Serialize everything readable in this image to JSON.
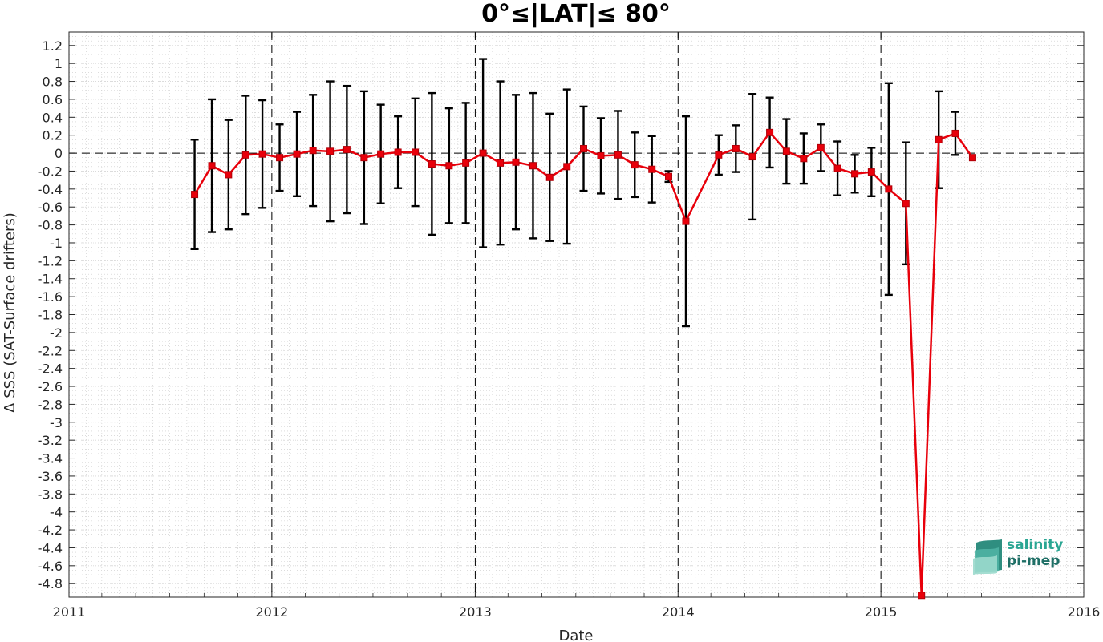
{
  "chart_data": {
    "type": "line",
    "title": "0°≤|LAT|≤ 80°",
    "xlabel": "Date",
    "ylabel": "Δ SSS (SAT-Surface drifters)",
    "xlim": [
      "2011-01-01",
      "2016-01-01"
    ],
    "ylim": [
      -4.95,
      1.35
    ],
    "xticks": [
      "2011",
      "2012",
      "2013",
      "2014",
      "2015",
      "2016"
    ],
    "yticks": [
      1.2,
      1,
      0.8,
      0.6,
      0.4,
      0.2,
      0,
      -0.2,
      -0.4,
      -0.6,
      -0.8,
      -1,
      -1.2,
      -1.4,
      -1.6,
      -1.8,
      -2,
      -2.2,
      -2.4,
      -2.6,
      -2.8,
      -3,
      -3.2,
      -3.4,
      -3.6,
      -3.8,
      -4,
      -4.2,
      -4.4,
      -4.6,
      -4.8
    ],
    "grid": true,
    "year_lines": [
      "2012",
      "2013",
      "2014",
      "2015"
    ],
    "zero_line": 0,
    "colors": {
      "series": "#e8000b",
      "errorbar": "#000000",
      "grid": "#c8c8c8"
    },
    "series": [
      {
        "dates": [
          "2011-08-15",
          "2011-09-15",
          "2011-10-15",
          "2011-11-15",
          "2011-12-15",
          "2012-01-15",
          "2012-02-15",
          "2012-03-15",
          "2012-04-15",
          "2012-05-15",
          "2012-06-15",
          "2012-07-15",
          "2012-08-15",
          "2012-09-15",
          "2012-10-15",
          "2012-11-15",
          "2012-12-15",
          "2013-01-15",
          "2013-02-15",
          "2013-03-15",
          "2013-04-15",
          "2013-05-15",
          "2013-06-15",
          "2013-07-15",
          "2013-08-15",
          "2013-09-15",
          "2013-10-15",
          "2013-11-15",
          "2013-12-15",
          "2014-01-15",
          "2014-03-15",
          "2014-04-15",
          "2014-05-15",
          "2014-06-15",
          "2014-07-15",
          "2014-08-15",
          "2014-09-15",
          "2014-10-15",
          "2014-11-15",
          "2014-12-15",
          "2015-01-15",
          "2015-02-15",
          "2015-03-15",
          "2015-04-15",
          "2015-05-15",
          "2015-06-15"
        ],
        "y": [
          -0.46,
          -0.14,
          -0.24,
          -0.02,
          -0.01,
          -0.05,
          -0.01,
          0.03,
          0.02,
          0.04,
          -0.05,
          -0.01,
          0.01,
          0.01,
          -0.12,
          -0.14,
          -0.11,
          0.0,
          -0.11,
          -0.1,
          -0.14,
          -0.27,
          -0.15,
          0.05,
          -0.03,
          -0.02,
          -0.13,
          -0.18,
          -0.26,
          -0.76,
          -0.02,
          0.05,
          -0.04,
          0.23,
          0.02,
          -0.06,
          0.06,
          -0.17,
          -0.23,
          -0.21,
          -0.4,
          -0.56,
          -4.93,
          0.15,
          0.22,
          -0.05
        ],
        "err": [
          0.61,
          0.74,
          0.61,
          0.66,
          0.6,
          0.37,
          0.47,
          0.62,
          0.78,
          0.71,
          0.74,
          0.55,
          0.4,
          0.6,
          0.79,
          0.64,
          0.67,
          1.05,
          0.91,
          0.75,
          0.81,
          0.71,
          0.86,
          0.47,
          0.42,
          0.49,
          0.36,
          0.37,
          0.06,
          1.17,
          0.22,
          0.26,
          0.7,
          0.39,
          0.36,
          0.28,
          0.26,
          0.3,
          0.21,
          0.27,
          1.18,
          0.68,
          0.0,
          0.54,
          0.24,
          0.0
        ]
      }
    ]
  },
  "logo": {
    "line1": "salinity",
    "line2": "pi-mep"
  }
}
